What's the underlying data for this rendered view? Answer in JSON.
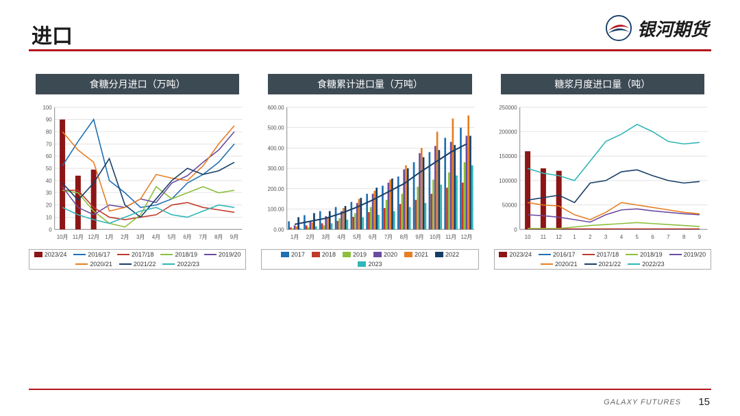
{
  "page": {
    "title": "进口",
    "page_number": "15",
    "footer": "GALAXY FUTURES",
    "brand": "银河期货"
  },
  "palette": {
    "bar2023_24": "#8c1515",
    "s2016_17": "#1f6fb2",
    "s2017_18": "#c0392b",
    "s2018_19": "#8bbf3c",
    "s2019_20": "#6b4ba0",
    "s2020_21": "#e67e22",
    "s2021_22": "#163d66",
    "s2022_23": "#2fb6b6",
    "b2017": "#1f6fb2",
    "b2018": "#c0392b",
    "b2019": "#8bbf3c",
    "b2020": "#6b4ba0",
    "b2021": "#e67e22",
    "b2022": "#163d66",
    "b2023": "#2fb6b6",
    "grid": "#d0d0d0",
    "axis": "#888",
    "bg": "#ffffff"
  },
  "chart1": {
    "title": "食糖分月进口（万吨）",
    "type": "bar+line",
    "x_labels": [
      "10月",
      "11月",
      "12月",
      "1月",
      "2月",
      "3月",
      "4月",
      "5月",
      "6月",
      "7月",
      "8月",
      "9月"
    ],
    "ylim": [
      0,
      100
    ],
    "ytick_step": 10,
    "bars_2023_24": [
      90,
      44,
      49,
      null,
      null,
      null,
      null,
      null,
      null,
      null,
      null,
      null
    ],
    "lines": {
      "2016/17": [
        52,
        72,
        90,
        40,
        30,
        18,
        20,
        25,
        38,
        45,
        55,
        70
      ],
      "2017/18": [
        32,
        32,
        18,
        10,
        8,
        10,
        12,
        20,
        22,
        18,
        16,
        14
      ],
      "2018/19": [
        32,
        30,
        15,
        5,
        2,
        12,
        35,
        25,
        30,
        35,
        30,
        32
      ],
      "2019/20": [
        35,
        18,
        12,
        20,
        18,
        25,
        22,
        38,
        44,
        55,
        65,
        80
      ],
      "2020/21": [
        80,
        65,
        55,
        15,
        18,
        25,
        45,
        42,
        40,
        52,
        70,
        85
      ],
      "2021/22": [
        38,
        24,
        38,
        58,
        20,
        10,
        25,
        40,
        50,
        45,
        48,
        55
      ],
      "2022/23": [
        18,
        12,
        8,
        5,
        10,
        15,
        18,
        12,
        10,
        15,
        20,
        18
      ]
    },
    "legend": [
      [
        "2023/24",
        "bar",
        "bar2023_24"
      ],
      [
        "2016/17",
        "line",
        "s2016_17"
      ],
      [
        "2017/18",
        "line",
        "s2017_18"
      ],
      [
        "2018/19",
        "line",
        "s2018_19"
      ],
      [
        "2019/20",
        "line",
        "s2019_20"
      ],
      [
        "2020/21",
        "line",
        "s2020_21"
      ],
      [
        "2021/22",
        "line",
        "s2021_22"
      ],
      [
        "2022/23",
        "line",
        "s2022_23"
      ]
    ]
  },
  "chart2": {
    "title": "食糖累计进口量（万吨）",
    "type": "grouped-bar+line",
    "x_labels": [
      "1月",
      "2月",
      "3月",
      "4月",
      "5月",
      "6月",
      "7月",
      "8月",
      "9月",
      "10月",
      "11月",
      "12月"
    ],
    "ylim": [
      0,
      600
    ],
    "ytick_step": 100,
    "y_format": ".00",
    "bars": {
      "2017": [
        40,
        70,
        90,
        110,
        135,
        175,
        215,
        260,
        330,
        380,
        450,
        500
      ],
      "2018": [
        10,
        20,
        30,
        42,
        62,
        85,
        105,
        125,
        145,
        175,
        205,
        230
      ],
      "2019": [
        5,
        10,
        20,
        55,
        80,
        110,
        145,
        175,
        210,
        245,
        280,
        330
      ],
      "2020": [
        20,
        40,
        65,
        90,
        130,
        175,
        230,
        295,
        375,
        410,
        430,
        460
      ],
      "2021": [
        15,
        35,
        60,
        105,
        150,
        190,
        245,
        315,
        400,
        480,
        545,
        560
      ],
      "2022": [
        60,
        80,
        90,
        115,
        155,
        205,
        250,
        300,
        355,
        390,
        415,
        460
      ],
      "2023": [
        5,
        15,
        30,
        48,
        60,
        72,
        90,
        110,
        130,
        220,
        265,
        315
      ]
    },
    "line_avg": [
      25,
      40,
      55,
      80,
      110,
      145,
      185,
      225,
      280,
      330,
      380,
      420
    ],
    "legend": [
      [
        "2017",
        "bar",
        "b2017"
      ],
      [
        "2018",
        "bar",
        "b2018"
      ],
      [
        "2019",
        "bar",
        "b2019"
      ],
      [
        "2020",
        "bar",
        "b2020"
      ],
      [
        "2021",
        "bar",
        "b2021"
      ],
      [
        "2022",
        "bar",
        "b2022"
      ],
      [
        "2023",
        "bar",
        "b2023"
      ]
    ]
  },
  "chart3": {
    "title": "糖浆月度进口量（吨）",
    "type": "bar+line",
    "x_labels": [
      "10",
      "11",
      "12",
      "1",
      "2",
      "3",
      "4",
      "5",
      "6",
      "7",
      "8",
      "9"
    ],
    "ylim": [
      0,
      250000
    ],
    "ytick_step": 50000,
    "bars_2023_24": [
      160000,
      125000,
      120000,
      null,
      null,
      null,
      null,
      null,
      null,
      null,
      null,
      null
    ],
    "lines": {
      "2016/17": [
        500,
        500,
        500,
        500,
        500,
        500,
        500,
        500,
        500,
        500,
        500,
        500
      ],
      "2017/18": [
        1000,
        1000,
        1000,
        1000,
        1000,
        1000,
        1000,
        1000,
        1000,
        1000,
        1000,
        1000
      ],
      "2018/19": [
        2000,
        2000,
        2000,
        5000,
        8000,
        10000,
        12000,
        14000,
        12000,
        10000,
        8000,
        6000
      ],
      "2019/20": [
        30000,
        28000,
        25000,
        20000,
        15000,
        30000,
        40000,
        42000,
        38000,
        35000,
        32000,
        30000
      ],
      "2020/21": [
        55000,
        50000,
        48000,
        30000,
        20000,
        35000,
        55000,
        50000,
        45000,
        40000,
        35000,
        32000
      ],
      "2021/22": [
        60000,
        65000,
        70000,
        55000,
        95000,
        100000,
        118000,
        122000,
        110000,
        100000,
        95000,
        98000
      ],
      "2022/23": [
        125000,
        115000,
        110000,
        100000,
        140000,
        180000,
        195000,
        215000,
        200000,
        180000,
        175000,
        178000
      ]
    },
    "legend": [
      [
        "2023/24",
        "bar",
        "bar2023_24"
      ],
      [
        "2016/17",
        "line",
        "s2016_17"
      ],
      [
        "2017/18",
        "line",
        "s2017_18"
      ],
      [
        "2018/19",
        "line",
        "s2018_19"
      ],
      [
        "2019/20",
        "line",
        "s2019_20"
      ],
      [
        "2020/21",
        "line",
        "s2020_21"
      ],
      [
        "2021/22",
        "line",
        "s2021_22"
      ],
      [
        "2022/23",
        "line",
        "s2022_23"
      ]
    ]
  }
}
